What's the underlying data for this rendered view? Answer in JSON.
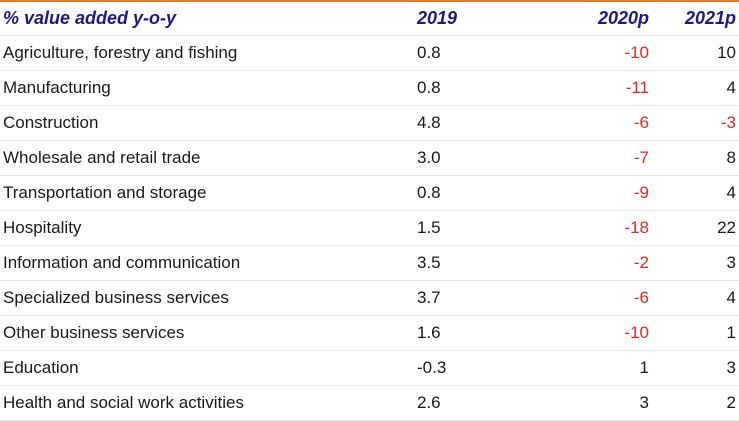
{
  "table": {
    "headers": {
      "label": "% value added y-o-y",
      "y2019": "2019",
      "y2020": "2020p",
      "y2021": "2021p"
    },
    "rows": [
      {
        "label": "Agriculture, forestry and fishing",
        "y2019": "0.8",
        "y2020": "-10",
        "y2021": "10"
      },
      {
        "label": "Manufacturing",
        "y2019": "0.8",
        "y2020": "-11",
        "y2021": "4"
      },
      {
        "label": "Construction",
        "y2019": "4.8",
        "y2020": "-6",
        "y2021": "-3"
      },
      {
        "label": "Wholesale and retail trade",
        "y2019": "3.0",
        "y2020": "-7",
        "y2021": "8"
      },
      {
        "label": "Transportation and storage",
        "y2019": "0.8",
        "y2020": "-9",
        "y2021": "4"
      },
      {
        "label": "Hospitality",
        "y2019": "1.5",
        "y2020": "-18",
        "y2021": "22"
      },
      {
        "label": "Information and communication",
        "y2019": "3.5",
        "y2020": "-2",
        "y2021": "3"
      },
      {
        "label": "Specialized business services",
        "y2019": "3.7",
        "y2020": "-6",
        "y2021": "4"
      },
      {
        "label": "Other business services",
        "y2019": "1.6",
        "y2020": "-10",
        "y2021": "1"
      },
      {
        "label": "Education",
        "y2019": "-0.3",
        "y2020": "1",
        "y2021": "3"
      },
      {
        "label": "Health and social work activities",
        "y2019": "2.6",
        "y2020": "3",
        "y2021": "2"
      }
    ]
  },
  "colors": {
    "header_text": "#1a1a8c",
    "negative_forecast": "#e8281e",
    "top_rule": "#e8792b"
  }
}
